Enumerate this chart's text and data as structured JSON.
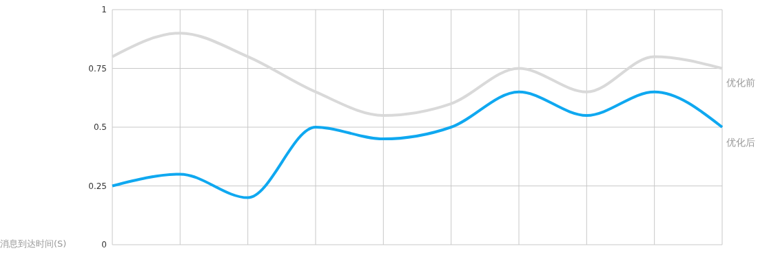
{
  "chart_data": {
    "type": "line",
    "ylabel": "消息到达时间(S)",
    "categories": [
      null,
      null,
      null,
      null,
      null,
      null,
      null,
      null,
      null,
      null
    ],
    "series": [
      {
        "name": "优化前",
        "color": "#d9d9d9",
        "values": [
          0.8,
          0.9,
          0.8,
          0.65,
          0.55,
          0.6,
          0.75,
          0.65,
          0.8,
          0.75
        ]
      },
      {
        "name": "优化后",
        "color": "#0fa8f0",
        "values": [
          0.25,
          0.3,
          0.2,
          0.5,
          0.45,
          0.5,
          0.65,
          0.55,
          0.65,
          0.5
        ]
      }
    ],
    "ylim": [
      0,
      1
    ],
    "yticks": [
      0,
      0.25,
      0.5,
      0.75,
      1
    ],
    "grid": true,
    "marker": "none",
    "line_style": "solid",
    "tick_labels": "y"
  }
}
